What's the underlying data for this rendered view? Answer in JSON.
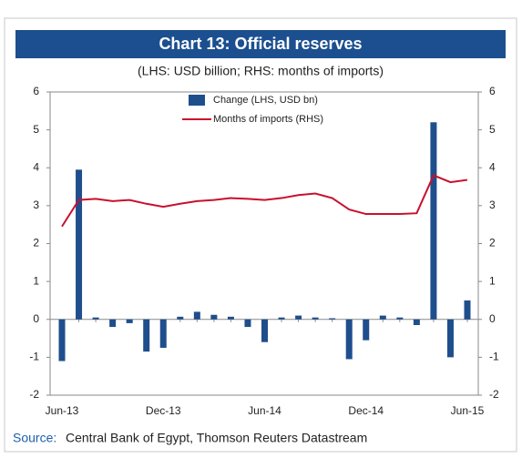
{
  "chart_data": {
    "type": "bar-line",
    "title": "Chart 13: Official reserves",
    "subtitle": "(LHS: USD billion; RHS: months of imports)",
    "categories": [
      "Jun-13",
      null,
      null,
      null,
      null,
      null,
      "Dec-13",
      null,
      null,
      null,
      null,
      null,
      "Jun-14",
      null,
      null,
      null,
      null,
      null,
      "Dec-14",
      null,
      null,
      null,
      null,
      null,
      "Jun-15"
    ],
    "series": [
      {
        "name": "Change (LHS, USD bn)",
        "type": "bar",
        "color": "#1f4e8c",
        "values": [
          -1.1,
          3.95,
          0.05,
          -0.2,
          -0.1,
          -0.85,
          -0.75,
          0.07,
          0.2,
          0.12,
          0.07,
          -0.2,
          -0.6,
          0.05,
          0.1,
          0.05,
          0.03,
          -1.05,
          -0.55,
          0.1,
          0.05,
          -0.15,
          5.2,
          -1.0,
          0.5
        ]
      },
      {
        "name": "Months of imports (RHS)",
        "type": "line",
        "axis": "y2",
        "color": "#c8102e",
        "values": [
          2.45,
          3.15,
          3.18,
          3.12,
          3.15,
          3.05,
          2.97,
          3.05,
          3.12,
          3.15,
          3.2,
          3.18,
          3.15,
          3.2,
          3.28,
          3.32,
          3.2,
          2.9,
          2.78,
          2.78,
          2.78,
          2.8,
          3.8,
          3.62,
          3.68
        ]
      }
    ],
    "ylim": [
      -2,
      6
    ],
    "yticks": [
      -2,
      -1,
      0,
      1,
      2,
      3,
      4,
      5,
      6
    ],
    "y2lim": [
      -2,
      6
    ],
    "y2ticks": [
      -2,
      -1,
      0,
      1,
      2,
      3,
      4,
      5,
      6
    ],
    "source_label": "Source:",
    "source": "Central Bank of Egypt, Thomson Reuters Datastream"
  }
}
